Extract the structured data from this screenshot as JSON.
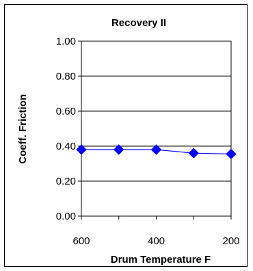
{
  "chart_data": {
    "type": "line",
    "title": "Recovery II",
    "xlabel": "Drum Temperature F",
    "ylabel": "Coeff. Friction",
    "x": [
      600,
      500,
      400,
      300,
      200
    ],
    "x_ticks": [
      "600",
      "400",
      "200"
    ],
    "x_tick_values": [
      600,
      400,
      200
    ],
    "xlim": [
      600,
      200
    ],
    "ylim": [
      0,
      1
    ],
    "y_ticks": [
      "0.00",
      "0.20",
      "0.40",
      "0.60",
      "0.80",
      "1.00"
    ],
    "y_tick_values": [
      0,
      0.2,
      0.4,
      0.6,
      0.8,
      1.0
    ],
    "grid": true,
    "legend": "none",
    "series": [
      {
        "values": [
          0.38,
          0.38,
          0.38,
          0.36,
          0.355
        ],
        "color": "#0000FF",
        "marker": "diamond"
      }
    ]
  }
}
